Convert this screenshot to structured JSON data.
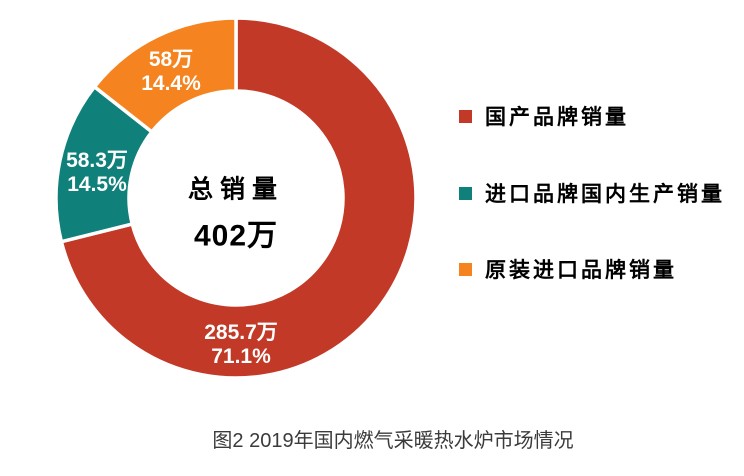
{
  "chart_data": {
    "type": "pie",
    "subtype": "donut",
    "title": "图2 2019年国内燃气采暖热水炉市场情况",
    "direction": "clockwise",
    "start_angle_deg": 0,
    "legend_position": "right",
    "center": {
      "label": "总销量",
      "value": "402万",
      "total_wan": 402
    },
    "slices": [
      {
        "name": "国产品牌销量",
        "value_wan": 285.7,
        "percent": 71.1,
        "value_label": "285.7万",
        "percent_label": "71.1%",
        "color": "#c23a27"
      },
      {
        "name": "进口品牌国内生产销量",
        "value_wan": 58.3,
        "percent": 14.5,
        "value_label": "58.3万",
        "percent_label": "14.5%",
        "color": "#10807a"
      },
      {
        "name": "原装进口品牌销量",
        "value_wan": 58,
        "percent": 14.4,
        "value_label": "58万",
        "percent_label": "14.4%",
        "color": "#f5831f"
      }
    ]
  },
  "caption": "图2 2019年国内燃气采暖热水炉市场情况"
}
